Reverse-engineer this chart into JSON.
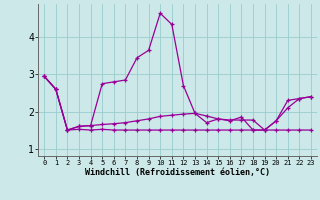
{
  "xlabel": "Windchill (Refroidissement éolien,°C)",
  "x": [
    0,
    1,
    2,
    3,
    4,
    5,
    6,
    7,
    8,
    9,
    10,
    11,
    12,
    13,
    14,
    15,
    16,
    17,
    18,
    19,
    20,
    21,
    22,
    23
  ],
  "line1": [
    2.95,
    2.6,
    1.5,
    1.52,
    1.5,
    1.52,
    1.5,
    1.5,
    1.5,
    1.5,
    1.5,
    1.5,
    1.5,
    1.5,
    1.5,
    1.5,
    1.5,
    1.5,
    1.5,
    1.5,
    1.5,
    1.5,
    1.5,
    1.5
  ],
  "line2": [
    2.95,
    2.6,
    1.5,
    1.6,
    1.62,
    2.75,
    2.8,
    2.85,
    3.45,
    3.65,
    4.65,
    4.35,
    2.7,
    1.95,
    1.7,
    1.8,
    1.75,
    1.85,
    1.5,
    1.5,
    1.75,
    2.3,
    2.35,
    2.4
  ],
  "line3": [
    2.95,
    2.6,
    1.5,
    1.6,
    1.62,
    1.65,
    1.67,
    1.7,
    1.75,
    1.8,
    1.87,
    1.9,
    1.93,
    1.95,
    1.88,
    1.8,
    1.77,
    1.77,
    1.77,
    1.5,
    1.75,
    2.1,
    2.35,
    2.4
  ],
  "line_color": "#990099",
  "bg_color": "#cce8e8",
  "grid_color": "#99cccc",
  "ylim": [
    0.8,
    4.9
  ],
  "xlim": [
    -0.5,
    23.5
  ],
  "xticks": [
    0,
    1,
    2,
    3,
    4,
    5,
    6,
    7,
    8,
    9,
    10,
    11,
    12,
    13,
    14,
    15,
    16,
    17,
    18,
    19,
    20,
    21,
    22,
    23
  ],
  "yticks": [
    1,
    2,
    3,
    4
  ],
  "xtick_labels": [
    "0",
    "1",
    "2",
    "3",
    "4",
    "5",
    "6",
    "7",
    "8",
    "9",
    "10",
    "11",
    "12",
    "13",
    "14",
    "15",
    "16",
    "17",
    "18",
    "19",
    "20",
    "21",
    "22",
    "23"
  ]
}
